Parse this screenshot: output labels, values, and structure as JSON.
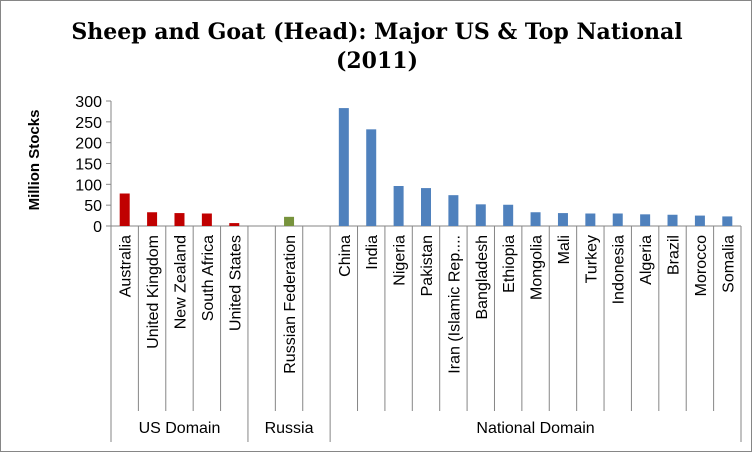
{
  "chart_data": {
    "type": "bar",
    "title_line1": "Sheep and Goat (Head):  Major US & Top  National",
    "title_line2": "(2011)",
    "ylabel": "Million  Stocks",
    "ylim": [
      0,
      300
    ],
    "yticks": [
      0,
      50,
      100,
      150,
      200,
      250,
      300
    ],
    "grid": false,
    "legend": "none",
    "categories": [
      "Australia",
      "United Kingdom",
      "New Zealand",
      "South Africa",
      "United States",
      "",
      "Russian Federation",
      "",
      "China",
      "India",
      "Nigeria",
      "Pakistan",
      "Iran (Islamic Rep....",
      "Bangladesh",
      "Ethiopia",
      "Mongolia",
      "Mali",
      "Turkey",
      "Indonesia",
      "Algeria",
      "Brazil",
      "Morocco",
      "Somalia"
    ],
    "values": [
      78,
      33,
      31,
      30,
      7,
      null,
      22,
      null,
      283,
      232,
      96,
      91,
      74,
      52,
      51,
      33,
      31,
      30,
      30,
      28,
      27,
      25,
      23
    ],
    "group_index": [
      0,
      0,
      0,
      0,
      0,
      1,
      1,
      1,
      2,
      2,
      2,
      2,
      2,
      2,
      2,
      2,
      2,
      2,
      2,
      2,
      2,
      2,
      2
    ],
    "groups": [
      {
        "label": "US Domain",
        "color": "#c00000"
      },
      {
        "label": "Russia",
        "color": "#77933c"
      },
      {
        "label": "National Domain",
        "color": "#4f81bd"
      }
    ],
    "axis_color": "#868686"
  }
}
